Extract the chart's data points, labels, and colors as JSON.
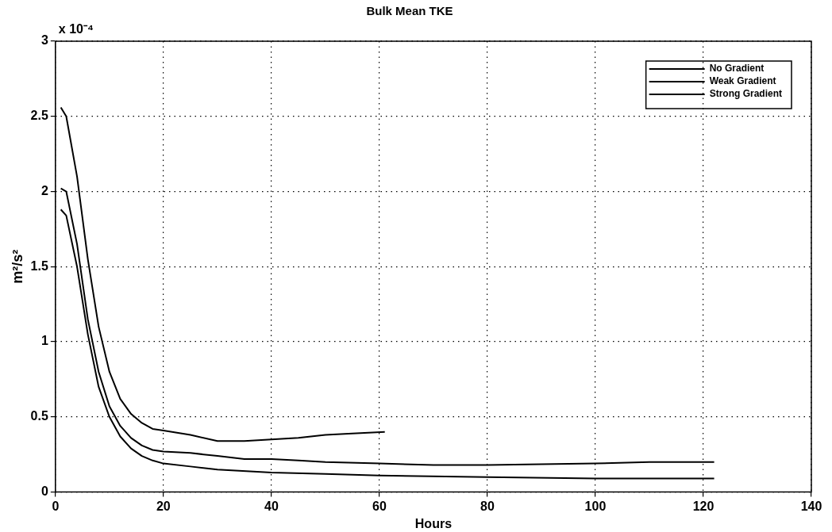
{
  "chart_data": {
    "type": "line",
    "title": "Bulk Mean TKE",
    "xlabel": "Hours",
    "ylabel": "m²/s²",
    "annotations": [
      "x 10⁻⁴"
    ],
    "xlim": [
      0,
      140
    ],
    "xticks": [
      0,
      20,
      40,
      60,
      80,
      100,
      120,
      140
    ],
    "ylim": [
      0,
      3
    ],
    "yticks": [
      0,
      0.5,
      1,
      1.5,
      2,
      2.5,
      3
    ],
    "grid": true,
    "legend": "top right",
    "line_style": "solid",
    "marker": "none",
    "series": [
      {
        "name": "No Gradient",
        "color": "#000000",
        "x": [
          1,
          2,
          4,
          6,
          8,
          10,
          12,
          14,
          16,
          18,
          20,
          25,
          30,
          35,
          40,
          45,
          50,
          55,
          61
        ],
        "values": [
          2.56,
          2.5,
          2.1,
          1.55,
          1.1,
          0.8,
          0.62,
          0.52,
          0.46,
          0.42,
          0.41,
          0.38,
          0.34,
          0.34,
          0.35,
          0.36,
          0.38,
          0.39,
          0.4
        ]
      },
      {
        "name": "Weak Gradient",
        "color": "#000000",
        "x": [
          1,
          2,
          4,
          6,
          8,
          10,
          12,
          14,
          16,
          18,
          20,
          25,
          30,
          35,
          40,
          45,
          50,
          60,
          70,
          80,
          100,
          110,
          122
        ],
        "values": [
          2.02,
          2.0,
          1.65,
          1.15,
          0.8,
          0.57,
          0.44,
          0.36,
          0.31,
          0.28,
          0.27,
          0.26,
          0.24,
          0.22,
          0.22,
          0.21,
          0.2,
          0.19,
          0.18,
          0.18,
          0.19,
          0.2,
          0.2
        ]
      },
      {
        "name": "Strong Gradient",
        "color": "#000000",
        "x": [
          1,
          2,
          4,
          6,
          8,
          10,
          12,
          14,
          16,
          18,
          20,
          25,
          30,
          40,
          50,
          60,
          80,
          100,
          122
        ],
        "values": [
          1.88,
          1.84,
          1.5,
          1.05,
          0.7,
          0.5,
          0.37,
          0.29,
          0.24,
          0.21,
          0.19,
          0.17,
          0.15,
          0.13,
          0.12,
          0.11,
          0.1,
          0.09,
          0.09
        ]
      }
    ]
  }
}
